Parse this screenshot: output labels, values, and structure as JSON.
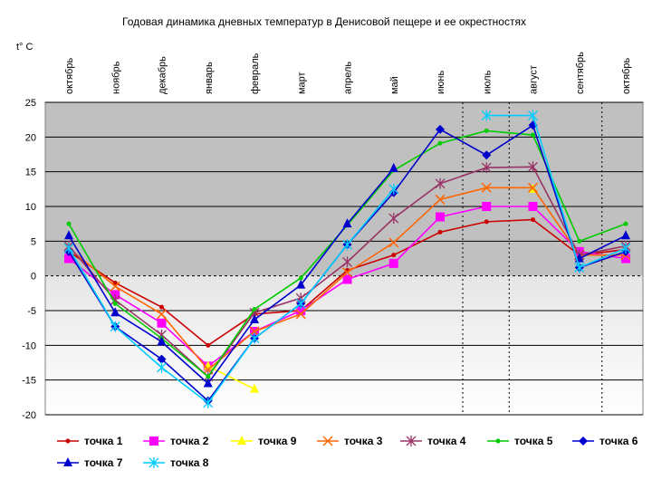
{
  "chart_data": {
    "type": "line",
    "title": "Годовая динамика дневных температур в Денисовой пещере и ее окрестностях",
    "ylabel": "t° C",
    "xlabel": "",
    "ylim": [
      -20,
      25
    ],
    "yticks": [
      25,
      20,
      15,
      10,
      5,
      0,
      -5,
      -10,
      -15,
      -20
    ],
    "categories": [
      "октябрь",
      "ноябрь",
      "декабрь",
      "январь",
      "февраль",
      "март",
      "апрель",
      "май",
      "июнь",
      "июль",
      "август",
      "сентябрь",
      "октябрь"
    ],
    "grid": true,
    "legend_position": "bottom",
    "series": [
      {
        "name": "точка 1",
        "color": "#cc0000",
        "marker": "dot",
        "values": [
          3.5,
          -1,
          -4.5,
          -10,
          -5.5,
          -5,
          0.8,
          3,
          6.3,
          7.8,
          8.1,
          3,
          3.8
        ]
      },
      {
        "name": "точка 2",
        "color": "#ff00ff",
        "marker": "square",
        "values": [
          2.5,
          -2.7,
          -6.8,
          -13,
          -8,
          -5,
          -0.5,
          1.8,
          8.5,
          10,
          10,
          3.5,
          2.5
        ]
      },
      {
        "name": "точка 9",
        "color": "#ffff00",
        "marker": "triangle",
        "values": [
          null,
          null,
          null,
          -13,
          -16.3,
          null,
          null,
          null,
          null,
          null,
          12.5,
          null,
          null
        ]
      },
      {
        "name": "точка 3",
        "color": "#ff6600",
        "marker": "x",
        "values": [
          4,
          -1.5,
          -5.5,
          -13.5,
          -8,
          -5.5,
          0.5,
          4.8,
          11,
          12.7,
          12.7,
          3,
          3
        ]
      },
      {
        "name": "точка 4",
        "color": "#993366",
        "marker": "star",
        "values": [
          4.3,
          -3.5,
          -8.5,
          -14.5,
          -5.3,
          -3.2,
          2,
          8.3,
          13.3,
          15.6,
          15.7,
          3,
          4.3
        ]
      },
      {
        "name": "точка 5",
        "color": "#00cc00",
        "marker": "dot",
        "values": [
          7.5,
          -4,
          -9,
          -14.5,
          -4.8,
          -0.3,
          7.3,
          15.2,
          19.1,
          20.9,
          20.3,
          5,
          7.5
        ]
      },
      {
        "name": "точка 6",
        "color": "#0000cc",
        "marker": "diamond",
        "values": [
          3.5,
          -7.3,
          -12,
          -18,
          -9,
          -4,
          4.5,
          12,
          21.1,
          17.4,
          21.7,
          1.2,
          3.5
        ]
      },
      {
        "name": "точка 7",
        "color": "#0000cc",
        "marker": "triangle",
        "values": [
          5.8,
          -5.3,
          -9.5,
          -15.5,
          -6.3,
          -1.3,
          7.5,
          15.5,
          null,
          null,
          null,
          2.5,
          5.8
        ]
      },
      {
        "name": "точка 8",
        "color": "#00ccff",
        "marker": "star",
        "values": [
          4,
          -7.3,
          -13.2,
          -18.3,
          -9,
          -4,
          4.5,
          12.5,
          null,
          23.1,
          23.1,
          1.2,
          4
        ]
      }
    ]
  }
}
